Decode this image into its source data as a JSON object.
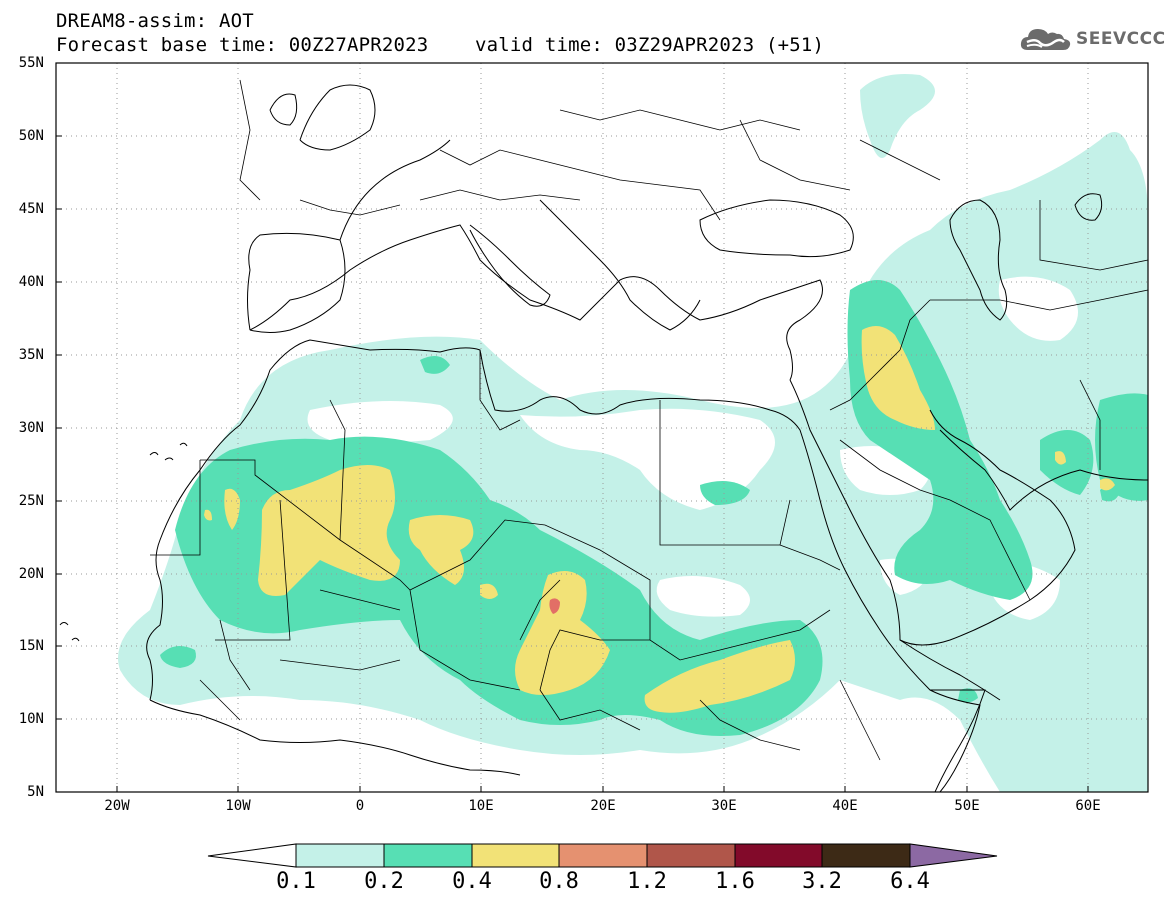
{
  "header": {
    "line1": "DREAM8-assim: AOT",
    "line2": "Forecast base time: 00Z27APR2023    valid time: 03Z29APR2023 (+51)"
  },
  "logo": {
    "text": "SEEVCCC",
    "icon": "cloud-icon"
  },
  "map": {
    "y_axis_labels": [
      "55N",
      "50N",
      "45N",
      "40N",
      "35N",
      "30N",
      "25N",
      "20N",
      "15N",
      "10N",
      "5N"
    ],
    "x_axis_labels": [
      "20W",
      "10W",
      "0",
      "10E",
      "20E",
      "30E",
      "40E",
      "50E",
      "60E"
    ]
  },
  "colorbar": {
    "labels": [
      "0.1",
      "0.2",
      "0.4",
      "0.8",
      "1.2",
      "1.6",
      "3.2",
      "6.4"
    ],
    "colors": [
      "#ffffff",
      "#c4f1e8",
      "#57dfb4",
      "#f2e277",
      "#e59170",
      "#b0564a",
      "#820a2a",
      "#3d2a16",
      "#8c69a3"
    ],
    "extend": "both"
  },
  "field_colors": {
    "low": "#c4f1e8",
    "mid": "#57dfb4",
    "high": "#f2e277",
    "peak": "#e26f66"
  }
}
